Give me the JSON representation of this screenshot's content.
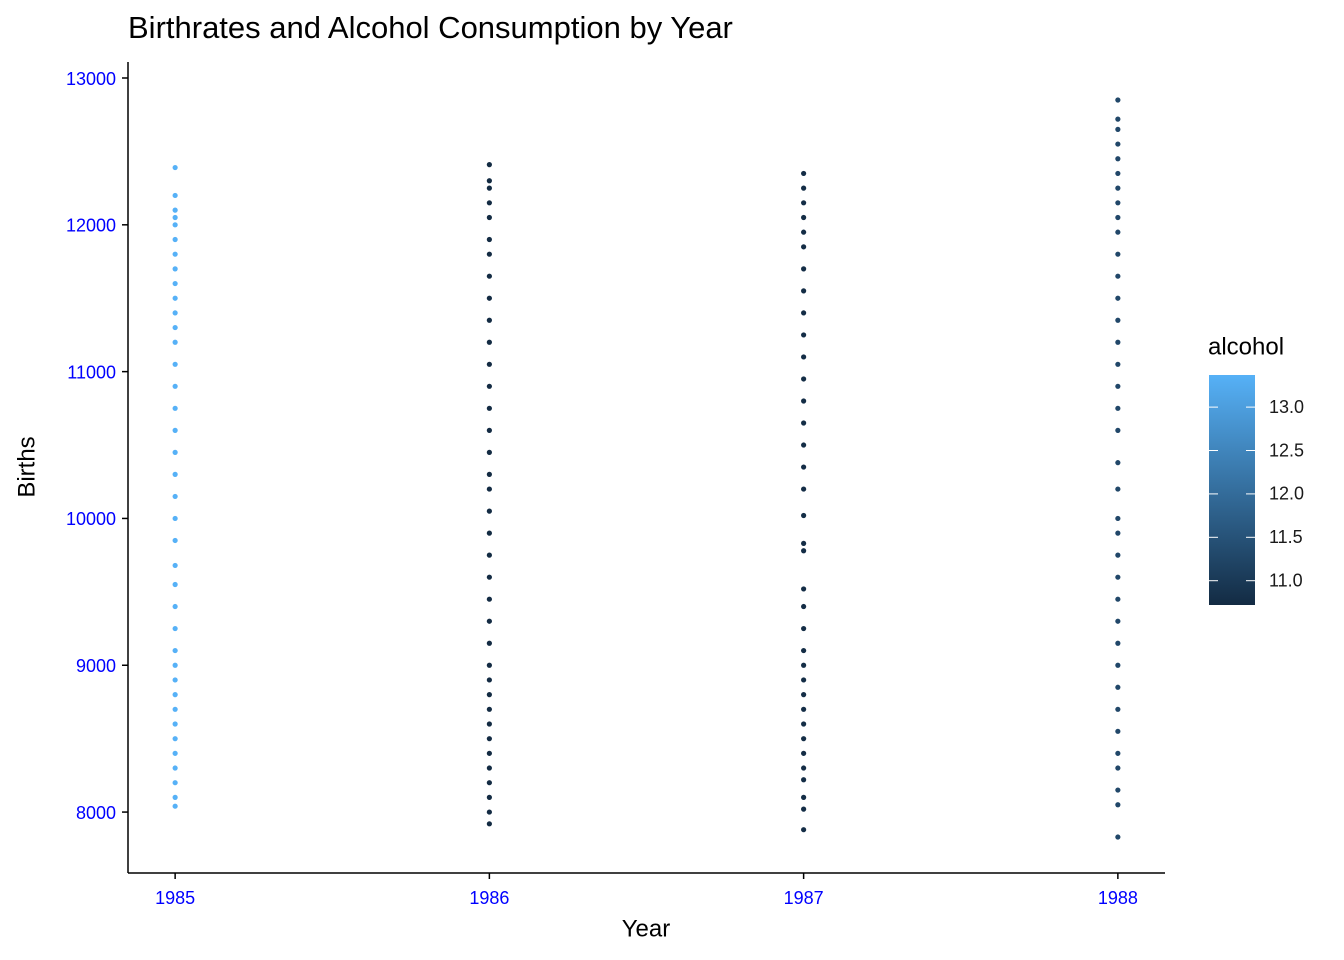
{
  "chart_data": {
    "type": "scatter",
    "title": "Birthrates and Alcohol Consumption by Year",
    "x_label": "Year",
    "y_label": "Births",
    "xlim": [
      1984.85,
      1988.15
    ],
    "ylim": [
      7585,
      13109
    ],
    "xticks": [
      1985,
      1986,
      1987,
      1988
    ],
    "yticks": [
      8000,
      9000,
      10000,
      11000,
      12000,
      13000
    ],
    "color_label": "alcohol",
    "colormap": [
      "#132B43",
      "#56B1F7"
    ],
    "clim": [
      10.72,
      13.37
    ],
    "cticks": [
      {
        "value": 11,
        "label": "11.0"
      },
      11.5,
      {
        "value": 12,
        "label": "12.0"
      },
      12.5,
      {
        "value": 13,
        "label": "13.0"
      }
    ],
    "groups": [
      {
        "x": 1985,
        "alcohol": 13.37,
        "y": [
          12390,
          12200,
          12100,
          12050,
          12000,
          11900,
          11800,
          11700,
          11600,
          11500,
          11400,
          11300,
          11200,
          11050,
          10900,
          10750,
          10600,
          10450,
          10300,
          10150,
          10000,
          9850,
          9680,
          9550,
          9400,
          9250,
          9100,
          9000,
          8900,
          8800,
          8700,
          8600,
          8500,
          8400,
          8300,
          8200,
          8100,
          8040
        ]
      },
      {
        "x": 1986,
        "alcohol": 10.72,
        "y": [
          12410,
          12300,
          12250,
          12150,
          12050,
          11900,
          11800,
          11650,
          11500,
          11350,
          11200,
          11050,
          10900,
          10750,
          10600,
          10450,
          10300,
          10200,
          10050,
          9900,
          9750,
          9600,
          9450,
          9300,
          9150,
          9000,
          8900,
          8800,
          8700,
          8600,
          8500,
          8400,
          8300,
          8200,
          8100,
          8000,
          7920
        ]
      },
      {
        "x": 1987,
        "alcohol": 10.76,
        "y": [
          12350,
          12250,
          12150,
          12050,
          11950,
          11850,
          11700,
          11550,
          11400,
          11250,
          11100,
          10950,
          10800,
          10650,
          10500,
          10350,
          10200,
          10020,
          9830,
          9780,
          9520,
          9400,
          9250,
          9100,
          9000,
          8900,
          8800,
          8700,
          8600,
          8500,
          8400,
          8300,
          8220,
          8100,
          8020,
          7880
        ]
      },
      {
        "x": 1988,
        "alcohol": 11.28,
        "y": [
          12850,
          12720,
          12650,
          12550,
          12450,
          12350,
          12250,
          12150,
          12050,
          11950,
          11800,
          11650,
          11500,
          11350,
          11200,
          11050,
          10900,
          10750,
          10600,
          10380,
          10200,
          10000,
          9900,
          9750,
          9600,
          9450,
          9300,
          9150,
          9000,
          8850,
          8700,
          8550,
          8400,
          8300,
          8150,
          8050,
          7830
        ]
      }
    ]
  }
}
